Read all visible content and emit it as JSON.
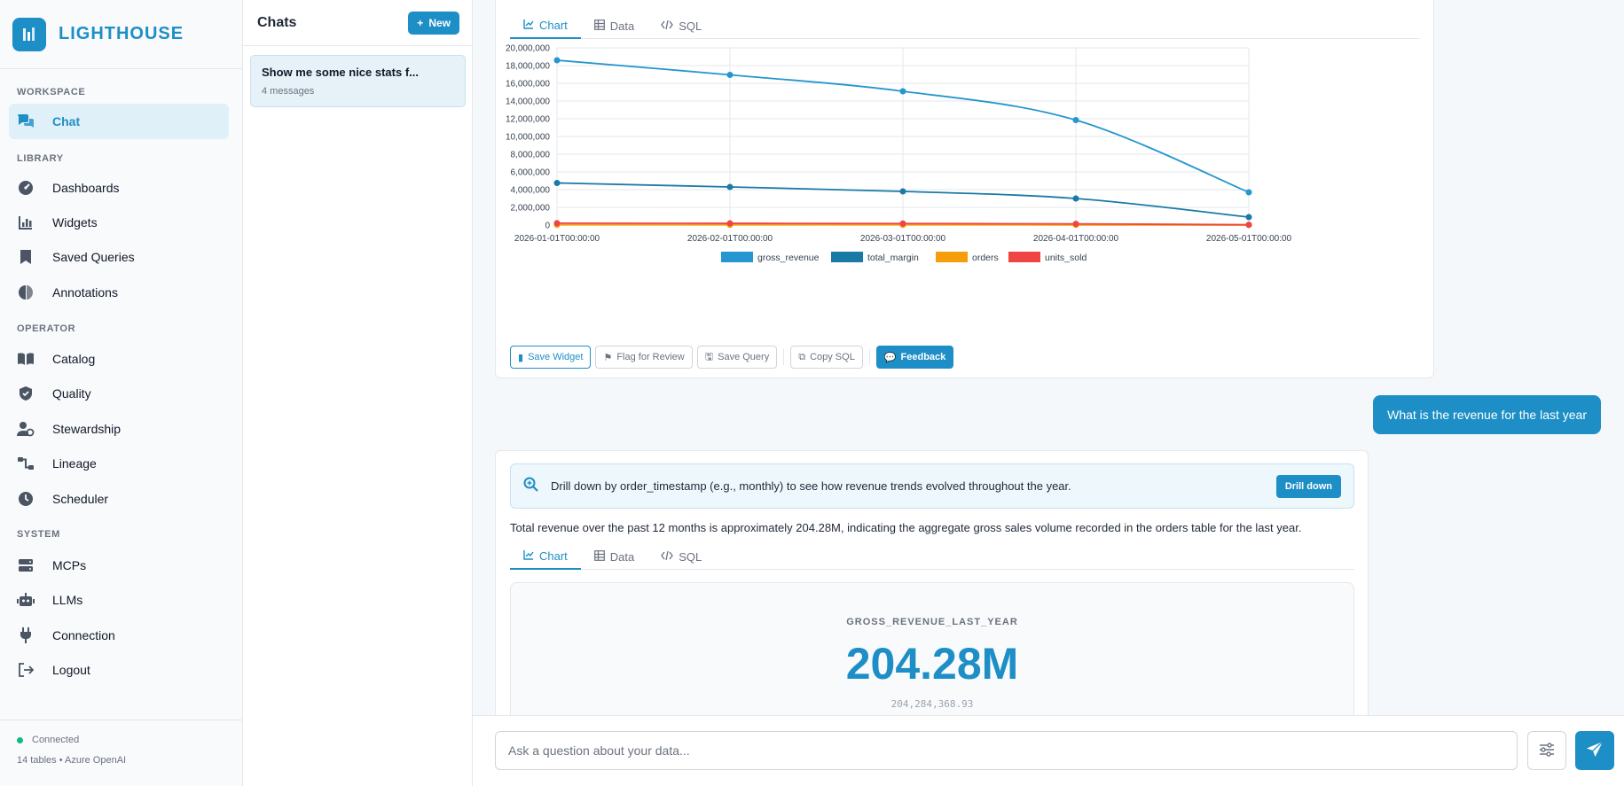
{
  "brand": {
    "name": "LIGHTHOUSE"
  },
  "sidebar": {
    "sections": [
      {
        "label": "WORKSPACE"
      },
      {
        "label": "LIBRARY"
      },
      {
        "label": "OPERATOR"
      },
      {
        "label": "SYSTEM"
      }
    ],
    "items": [
      {
        "label": "Chat",
        "icon": "chat-icon",
        "active": true
      },
      {
        "label": "Dashboards",
        "icon": "dashboard-icon"
      },
      {
        "label": "Widgets",
        "icon": "widgets-icon"
      },
      {
        "label": "Saved Queries",
        "icon": "bookmark-icon"
      },
      {
        "label": "Annotations",
        "icon": "annotations-icon"
      },
      {
        "label": "Catalog",
        "icon": "book-icon"
      },
      {
        "label": "Quality",
        "icon": "shield-icon"
      },
      {
        "label": "Stewardship",
        "icon": "user-gear-icon"
      },
      {
        "label": "Lineage",
        "icon": "lineage-icon"
      },
      {
        "label": "Scheduler",
        "icon": "clock-icon"
      },
      {
        "label": "MCPs",
        "icon": "server-icon"
      },
      {
        "label": "LLMs",
        "icon": "robot-icon"
      },
      {
        "label": "Connection",
        "icon": "plug-icon"
      },
      {
        "label": "Logout",
        "icon": "logout-icon"
      }
    ],
    "status": {
      "state": "Connected",
      "detail": "14 tables • Azure OpenAI"
    }
  },
  "chats": {
    "title": "Chats",
    "new_label": "New",
    "items": [
      {
        "title": "Show me some nice stats f...",
        "subtitle": "4 messages"
      }
    ]
  },
  "message1": {
    "tabs": [
      {
        "label": "Chart",
        "active": true
      },
      {
        "label": "Data"
      },
      {
        "label": "SQL"
      }
    ],
    "actions": {
      "save_widget": "Save Widget",
      "flag": "Flag for Review",
      "save_query": "Save Query",
      "copy_sql": "Copy SQL",
      "feedback": "Feedback"
    }
  },
  "chart_data": {
    "type": "line",
    "x": [
      "2026-01-01T00:00:00",
      "2026-02-01T00:00:00",
      "2026-03-01T00:00:00",
      "2026-04-01T00:00:00",
      "2026-05-01T00:00:00"
    ],
    "ylim": [
      0,
      20000000
    ],
    "yticks": [
      "0",
      "2,000,000",
      "4,000,000",
      "6,000,000",
      "8,000,000",
      "10,000,000",
      "12,000,000",
      "14,000,000",
      "16,000,000",
      "18,000,000",
      "20,000,000"
    ],
    "grid": true,
    "legend": "bottom",
    "series": [
      {
        "name": "gross_revenue",
        "color": "#2596cf",
        "values": [
          18600000,
          16950000,
          15100000,
          11850000,
          3700000
        ]
      },
      {
        "name": "total_margin",
        "color": "#1a7aa6",
        "values": [
          4750000,
          4300000,
          3800000,
          3000000,
          900000
        ]
      },
      {
        "name": "orders",
        "color": "#f59e0b",
        "values": [
          30000,
          28000,
          25000,
          20000,
          6000
        ]
      },
      {
        "name": "units_sold",
        "color": "#ef4444",
        "values": [
          210000,
          195000,
          175000,
          140000,
          40000
        ]
      }
    ]
  },
  "user_message": {
    "text": "What is the revenue for the last year"
  },
  "message2": {
    "tip": "Drill down by order_timestamp (e.g., monthly) to see how revenue trends evolved throughout the year.",
    "drill_label": "Drill down",
    "summary": "Total revenue over the past 12 months is approximately 204.28M, indicating the aggregate gross sales volume recorded in the orders table for the last year.",
    "tabs": [
      {
        "label": "Chart",
        "active": true
      },
      {
        "label": "Data"
      },
      {
        "label": "SQL"
      }
    ],
    "kpi": {
      "label": "GROSS_REVENUE_LAST_YEAR",
      "value": "204.28M",
      "raw": "204,284,368.93"
    }
  },
  "composer": {
    "placeholder": "Ask a question about your data..."
  }
}
